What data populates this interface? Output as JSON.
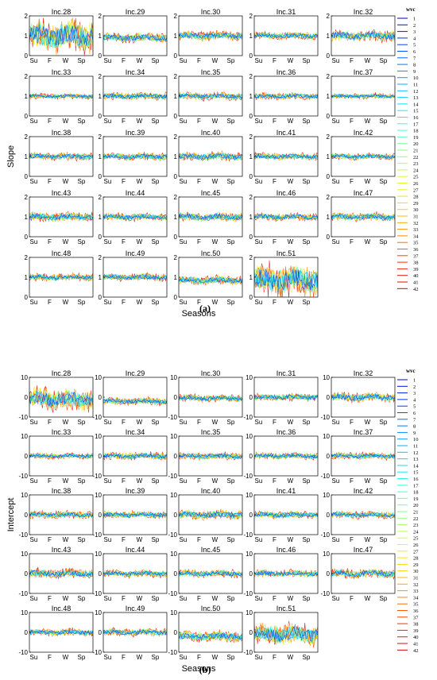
{
  "chart_data": [
    {
      "type": "line",
      "panel": "(a)",
      "ylabel": "Slope",
      "xlabel": "Seasons",
      "ylim": [
        0,
        2
      ],
      "yticks": [
        "0",
        "1",
        "2"
      ],
      "xticks": [
        "Su",
        "F",
        "W",
        "Sp"
      ],
      "legend_title": "wvc",
      "legend_position": "right",
      "baseline": 1,
      "subplots": [
        {
          "title": "Inc.28",
          "spread": 0.9,
          "bias": 0
        },
        {
          "title": "Inc.29",
          "spread": 0.25,
          "bias": -0.1
        },
        {
          "title": "Inc.30",
          "spread": 0.25,
          "bias": 0
        },
        {
          "title": "Inc.31",
          "spread": 0.2,
          "bias": 0
        },
        {
          "title": "Inc.32",
          "spread": 0.3,
          "bias": 0
        },
        {
          "title": "Inc.33",
          "spread": 0.15,
          "bias": 0
        },
        {
          "title": "Inc.34",
          "spread": 0.2,
          "bias": 0
        },
        {
          "title": "Inc.35",
          "spread": 0.2,
          "bias": 0
        },
        {
          "title": "Inc.36",
          "spread": 0.18,
          "bias": 0
        },
        {
          "title": "Inc.37",
          "spread": 0.15,
          "bias": 0
        },
        {
          "title": "Inc.38",
          "spread": 0.2,
          "bias": 0
        },
        {
          "title": "Inc.39",
          "spread": 0.2,
          "bias": 0
        },
        {
          "title": "Inc.40",
          "spread": 0.25,
          "bias": 0
        },
        {
          "title": "Inc.41",
          "spread": 0.2,
          "bias": 0
        },
        {
          "title": "Inc.42",
          "spread": 0.18,
          "bias": 0
        },
        {
          "title": "Inc.43",
          "spread": 0.25,
          "bias": 0
        },
        {
          "title": "Inc.44",
          "spread": 0.2,
          "bias": 0
        },
        {
          "title": "Inc.45",
          "spread": 0.25,
          "bias": 0
        },
        {
          "title": "Inc.46",
          "spread": 0.2,
          "bias": 0
        },
        {
          "title": "Inc.47",
          "spread": 0.22,
          "bias": 0
        },
        {
          "title": "Inc.48",
          "spread": 0.2,
          "bias": 0
        },
        {
          "title": "Inc.49",
          "spread": 0.2,
          "bias": 0
        },
        {
          "title": "Inc.50",
          "spread": 0.25,
          "bias": -0.15
        },
        {
          "title": "Inc.51",
          "spread": 0.9,
          "bias": -0.15
        }
      ]
    },
    {
      "type": "line",
      "panel": "(b)",
      "ylabel": "Intercept",
      "xlabel": "Seasons",
      "ylim": [
        -10,
        10
      ],
      "yticks": [
        "-10",
        "0",
        "10"
      ],
      "xticks": [
        "Su",
        "F",
        "W",
        "Sp"
      ],
      "legend_title": "wvc",
      "legend_position": "right",
      "baseline": 0,
      "subplots": [
        {
          "title": "Inc.28",
          "spread": 6,
          "bias": -1
        },
        {
          "title": "Inc.29",
          "spread": 2,
          "bias": -2
        },
        {
          "title": "Inc.30",
          "spread": 2,
          "bias": -0.5
        },
        {
          "title": "Inc.31",
          "spread": 2,
          "bias": 0
        },
        {
          "title": "Inc.32",
          "spread": 2.5,
          "bias": 0
        },
        {
          "title": "Inc.33",
          "spread": 1.5,
          "bias": 0
        },
        {
          "title": "Inc.34",
          "spread": 2,
          "bias": 0
        },
        {
          "title": "Inc.35",
          "spread": 2,
          "bias": 0
        },
        {
          "title": "Inc.36",
          "spread": 1.8,
          "bias": 0
        },
        {
          "title": "Inc.37",
          "spread": 1.8,
          "bias": 0
        },
        {
          "title": "Inc.38",
          "spread": 2,
          "bias": 0
        },
        {
          "title": "Inc.39",
          "spread": 2,
          "bias": 0
        },
        {
          "title": "Inc.40",
          "spread": 2.5,
          "bias": 0
        },
        {
          "title": "Inc.41",
          "spread": 2,
          "bias": 0
        },
        {
          "title": "Inc.42",
          "spread": 2,
          "bias": 0
        },
        {
          "title": "Inc.43",
          "spread": 2.5,
          "bias": 0
        },
        {
          "title": "Inc.44",
          "spread": 2,
          "bias": 0
        },
        {
          "title": "Inc.45",
          "spread": 2,
          "bias": 0
        },
        {
          "title": "Inc.46",
          "spread": 2,
          "bias": 0
        },
        {
          "title": "Inc.47",
          "spread": 2.5,
          "bias": 0
        },
        {
          "title": "Inc.48",
          "spread": 2,
          "bias": 0
        },
        {
          "title": "Inc.49",
          "spread": 2,
          "bias": 0
        },
        {
          "title": "Inc.50",
          "spread": 3,
          "bias": -2
        },
        {
          "title": "Inc.51",
          "spread": 6,
          "bias": -1
        }
      ]
    }
  ],
  "legend": {
    "title": "wvc",
    "entries": [
      "1",
      "2",
      "3",
      "4",
      "5",
      "6",
      "7",
      "8",
      "9",
      "10",
      "11",
      "12",
      "13",
      "14",
      "15",
      "16",
      "17",
      "18",
      "19",
      "20",
      "21",
      "22",
      "23",
      "24",
      "25",
      "26",
      "27",
      "28",
      "29",
      "30",
      "31",
      "32",
      "33",
      "34",
      "35",
      "36",
      "37",
      "38",
      "39",
      "40",
      "41",
      "42"
    ]
  },
  "colormap": [
    "#0000c8",
    "#0040ff",
    "#0090ff",
    "#00d8ff",
    "#40ffd0",
    "#90ff80",
    "#d8ff30",
    "#ffd000",
    "#ff8800",
    "#ff3000",
    "#d00000"
  ],
  "panel_labels": {
    "a": "(a)",
    "b": "(b)"
  }
}
